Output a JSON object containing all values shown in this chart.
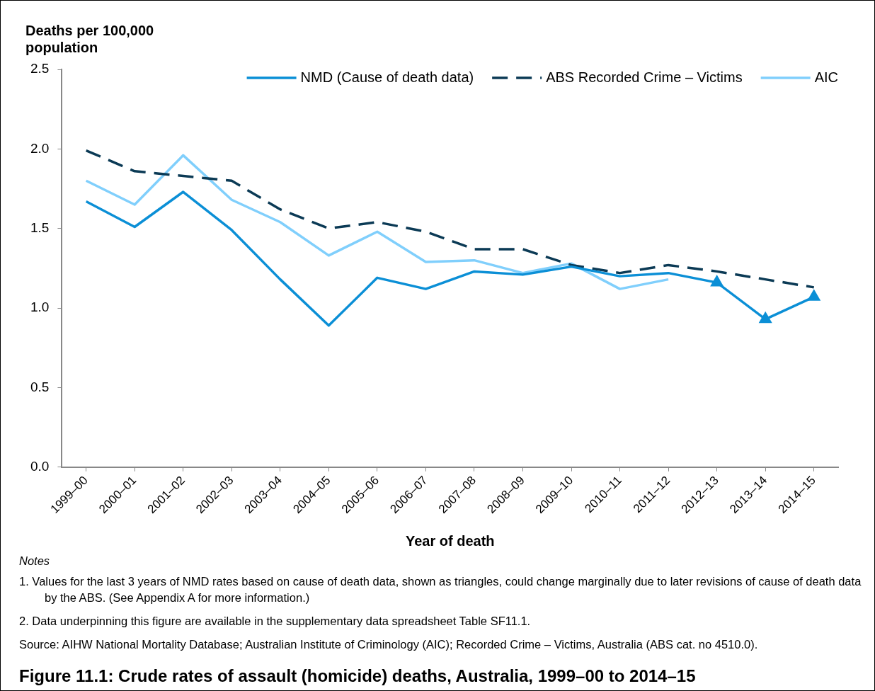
{
  "chart_data": {
    "type": "line",
    "title": "Figure 11.1: Crude rates of assault (homicide) deaths, Australia, 1999–00 to 2014–15",
    "ylabel": "Deaths per 100,000 population",
    "xlabel": "Year of death",
    "categories": [
      "1999–00",
      "2000–01",
      "2001–02",
      "2002–03",
      "2003–04",
      "2004–05",
      "2005–06",
      "2006–07",
      "2007–08",
      "2008–09",
      "2009–10",
      "2010–11",
      "2011–12",
      "2012–13",
      "2013–14",
      "2014–15"
    ],
    "series": [
      {
        "name": "NMD (Cause of death data)",
        "color": "#0b8fd6",
        "values": [
          1.67,
          1.51,
          1.73,
          1.49,
          1.18,
          0.89,
          1.19,
          1.12,
          1.23,
          1.21,
          1.26,
          1.2,
          1.22,
          1.16,
          0.93,
          1.07
        ]
      },
      {
        "name": "ABS Recorded Crime – Victims",
        "color": "#0b3a55",
        "line_style": "dashed",
        "values": [
          1.99,
          1.86,
          1.83,
          1.8,
          1.62,
          1.5,
          1.54,
          1.48,
          1.37,
          1.37,
          1.27,
          1.22,
          1.27,
          1.23,
          1.18,
          1.13
        ]
      },
      {
        "name": "AIC",
        "color": "#80cffc",
        "values": [
          1.8,
          1.65,
          1.96,
          1.68,
          1.54,
          1.33,
          1.48,
          1.29,
          1.3,
          1.22,
          1.28,
          1.12,
          1.18,
          null,
          null,
          null
        ]
      },
      {
        "type": "scatter",
        "marker": "triangle",
        "color": "#0b8fd6",
        "x": [
          "2012–13",
          "2013–14",
          "2014–15"
        ],
        "values": [
          1.16,
          0.93,
          1.07
        ]
      }
    ],
    "ylim": [
      0,
      2.5
    ],
    "yticks": [
      {
        "value": 0,
        "label": "0.0"
      },
      {
        "value": 0.5,
        "label": "0.5"
      },
      {
        "value": 1,
        "label": "1.0"
      },
      {
        "value": 1.5,
        "label": "1.5"
      },
      {
        "value": 2,
        "label": "2.0"
      },
      {
        "value": 2.5,
        "label": "2.5"
      }
    ],
    "grid": false,
    "legend": "top right",
    "marker": "none",
    "line_style": "solid",
    "annotations": [
      "Notes",
      "1. Values for the last 3 years of NMD rates based on cause of death data, shown as triangles, could change marginally due to later revisions of cause of death data by the ABS. (See Appendix A for more information.)",
      "2. Data underpinning this figure are available in the supplementary data spreadsheet Table SF11.1.",
      "Source: AIHW National Mortality Database; Australian Institute of Criminology (AIC); Recorded Crime – Victims, Australia (ABS cat. no 4510.0)."
    ]
  }
}
